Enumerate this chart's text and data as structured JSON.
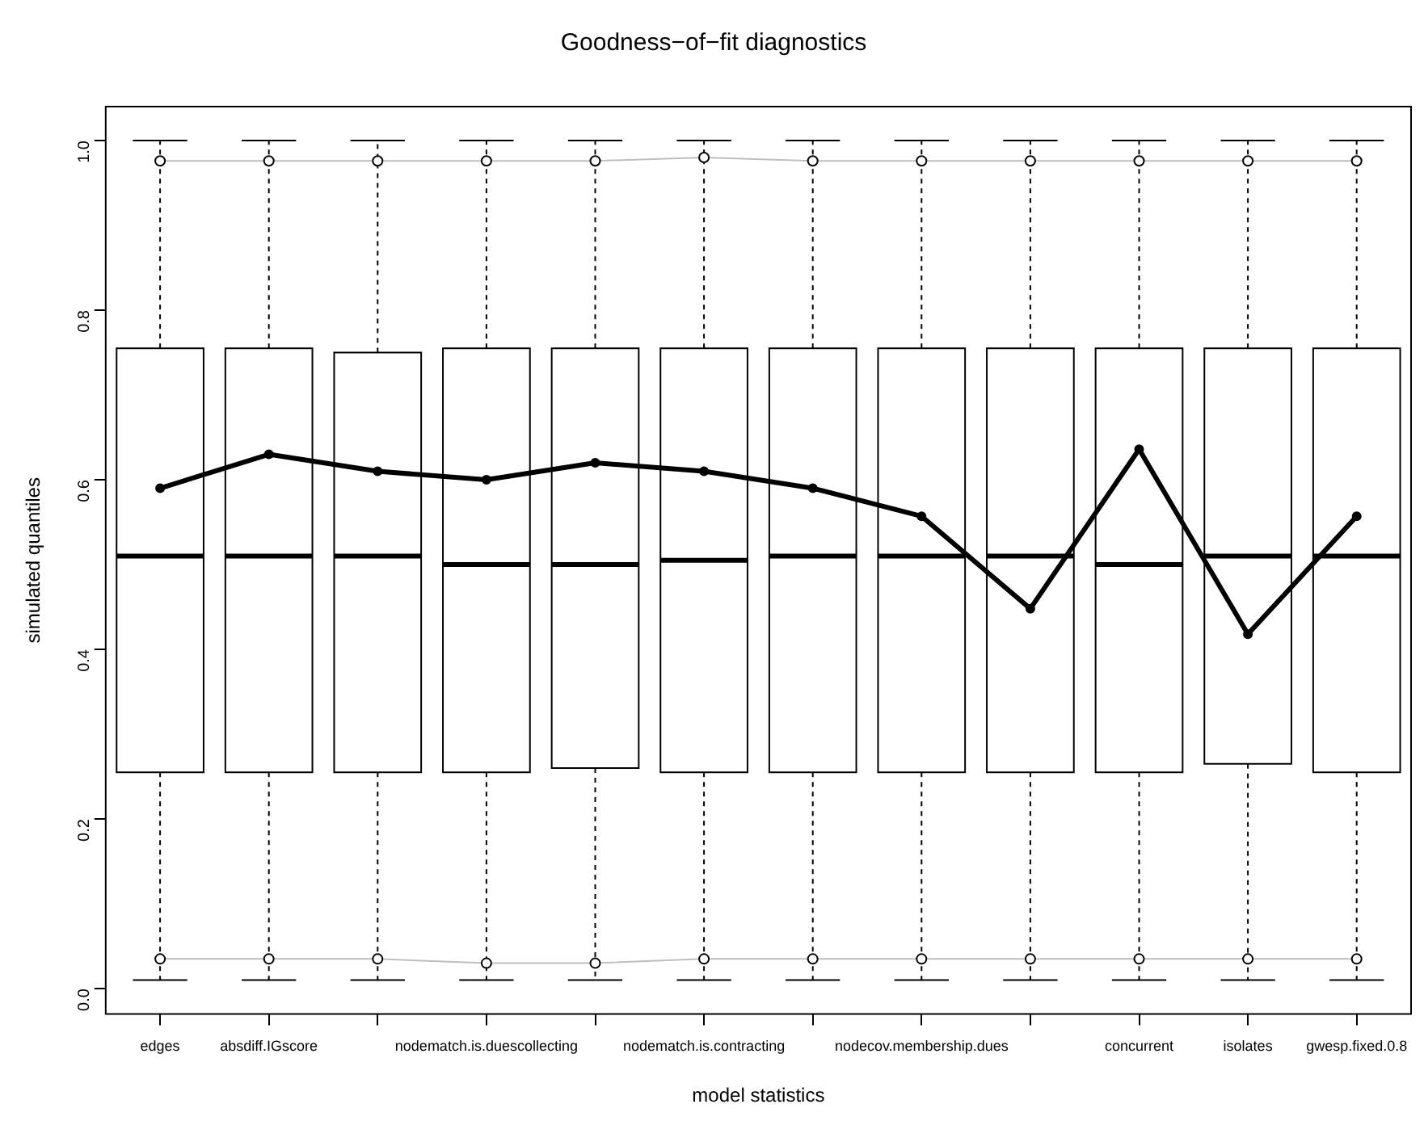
{
  "chart_data": {
    "type": "box",
    "title": "Goodness−of−fit diagnostics",
    "xlabel": "model statistics",
    "ylabel": "simulated quantiles",
    "categories": [
      "edges",
      "absdiff.IGscore",
      null,
      "nodematch.is.duescollecting",
      null,
      "nodematch.is.contracting",
      null,
      "nodecov.membership.dues",
      null,
      "concurrent",
      "isolates",
      "gwesp.fixed.0.8"
    ],
    "boxes": [
      {
        "low": 0.01,
        "q1": 0.255,
        "median": 0.51,
        "q3": 0.755,
        "high": 1.0
      },
      {
        "low": 0.01,
        "q1": 0.255,
        "median": 0.51,
        "q3": 0.755,
        "high": 1.0
      },
      {
        "low": 0.01,
        "q1": 0.255,
        "median": 0.51,
        "q3": 0.75,
        "high": 1.0
      },
      {
        "low": 0.01,
        "q1": 0.255,
        "median": 0.5,
        "q3": 0.755,
        "high": 1.0
      },
      {
        "low": 0.01,
        "q1": 0.26,
        "median": 0.5,
        "q3": 0.755,
        "high": 1.0
      },
      {
        "low": 0.01,
        "q1": 0.255,
        "median": 0.505,
        "q3": 0.755,
        "high": 1.0
      },
      {
        "low": 0.01,
        "q1": 0.255,
        "median": 0.51,
        "q3": 0.755,
        "high": 1.0
      },
      {
        "low": 0.01,
        "q1": 0.255,
        "median": 0.51,
        "q3": 0.755,
        "high": 1.0
      },
      {
        "low": 0.01,
        "q1": 0.255,
        "median": 0.51,
        "q3": 0.755,
        "high": 1.0
      },
      {
        "low": 0.01,
        "q1": 0.255,
        "median": 0.5,
        "q3": 0.755,
        "high": 1.0
      },
      {
        "low": 0.01,
        "q1": 0.265,
        "median": 0.51,
        "q3": 0.755,
        "high": 1.0
      },
      {
        "low": 0.01,
        "q1": 0.255,
        "median": 0.51,
        "q3": 0.755,
        "high": 1.0
      }
    ],
    "series": [
      {
        "type": "line",
        "color": "#bebebe",
        "values": [
          0.976,
          0.976,
          0.976,
          0.976,
          0.976,
          0.98,
          0.976,
          0.976,
          0.976,
          0.976,
          0.976,
          0.976
        ]
      },
      {
        "type": "line",
        "color": "#bebebe",
        "values": [
          0.035,
          0.035,
          0.035,
          0.03,
          0.03,
          0.035,
          0.035,
          0.035,
          0.035,
          0.035,
          0.035,
          0.035
        ]
      },
      {
        "type": "line",
        "color": "#000000",
        "values": [
          0.59,
          0.63,
          0.61,
          0.6,
          0.62,
          0.61,
          0.59,
          0.557,
          0.448,
          0.636,
          0.418,
          0.557
        ]
      }
    ],
    "marker": "circle",
    "ylim": [
      -0.03,
      1.04
    ],
    "yticks": [
      {
        "value": 0,
        "label": "0.0"
      },
      {
        "value": 0.2,
        "label": "0.2"
      },
      {
        "value": 0.4,
        "label": "0.4"
      },
      {
        "value": 0.6,
        "label": "0.6"
      },
      {
        "value": 0.8,
        "label": "0.8"
      },
      {
        "value": 1,
        "label": "1.0"
      }
    ]
  }
}
